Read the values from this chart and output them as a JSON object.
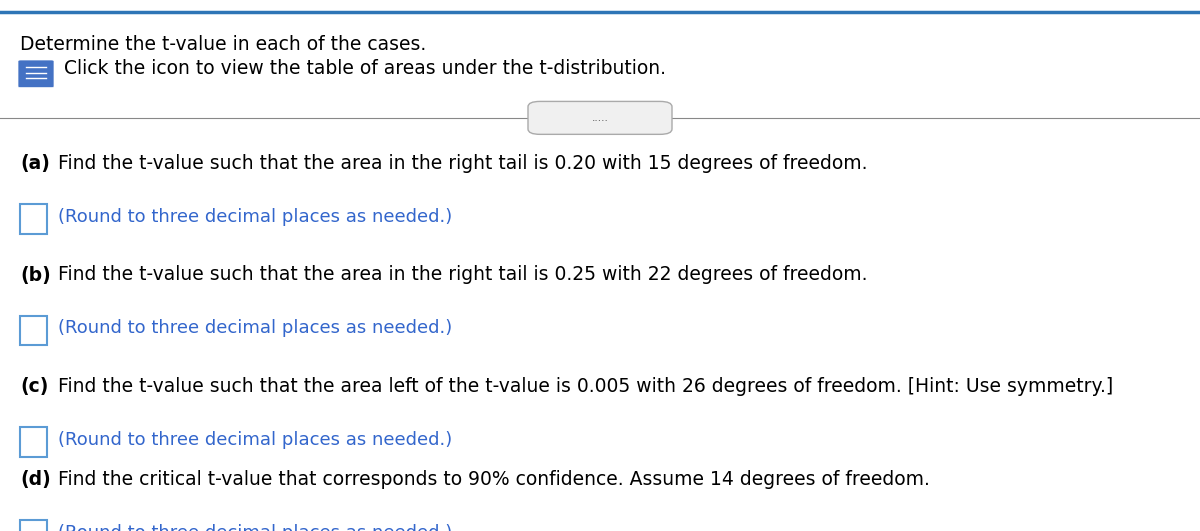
{
  "title_line1": "Determine the t-value in each of the cases.",
  "title_line2": "Click the icon to view the table of areas under the t-distribution.",
  "separator_dots": ".....",
  "question_a_bold": "(a)",
  "question_a_rest": " Find the t-value such that the area in the right tail is 0.20 with 15 degrees of freedom.",
  "question_b_bold": "(b)",
  "question_b_rest": " Find the t-value such that the area in the right tail is 0.25 with 22 degrees of freedom.",
  "question_c_bold": "(c)",
  "question_c_rest": " Find the t-value such that the area left of the t-value is 0.005 with 26 degrees of freedom. [Hint: Use symmetry.]",
  "question_d_bold": "(d)",
  "question_d_rest": " Find the critical t-value that corresponds to 90% confidence. Assume 14 degrees of freedom.",
  "round_text": "(Round to three decimal places as needed.)",
  "text_color": "#000000",
  "blue_text_color": "#3366CC",
  "box_color": "#5B9BD5",
  "icon_color": "#4472C4",
  "separator_color": "#888888",
  "bg_color": "#ffffff",
  "top_border_color": "#2E75B6",
  "font_size_title": 13.5,
  "font_size_body": 13.5,
  "font_size_blue": 13.0
}
